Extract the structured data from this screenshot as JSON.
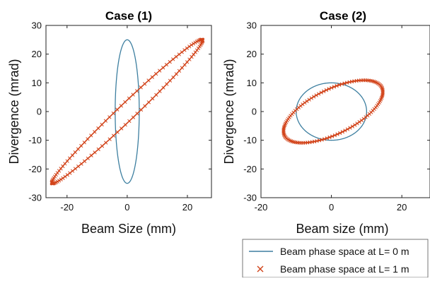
{
  "colors": {
    "title": "#3e75b5",
    "initial": "#3d7fa0",
    "final": "#d2441b",
    "axes": "#222222"
  },
  "legend": {
    "initial_label": "Beam phase space at L= 0 m",
    "final_label": "Beam phase space at L= 1 m",
    "placement": "bottom-right"
  },
  "chart_data": [
    {
      "type": "line",
      "title": "Case (1)",
      "xlabel": "Beam Size (mm)",
      "ylabel": "Divergence (mrad)",
      "xlim": [
        -27,
        28
      ],
      "ylim": [
        -30,
        30
      ],
      "xticks": [
        -20,
        0,
        20
      ],
      "yticks": [
        -30,
        -20,
        -10,
        0,
        10,
        20,
        30
      ],
      "grid": false,
      "series": [
        {
          "name": "Beam phase space at L= 0 m",
          "marker": "line",
          "color": "#3d7fa0",
          "shape": "ellipse",
          "center": [
            0,
            0
          ],
          "x_halfwidth": 4,
          "y_halfheight": 25,
          "tilt": "upright"
        },
        {
          "name": "Beam phase space at L= 1 m",
          "marker": "x",
          "color": "#d2441b",
          "shape": "ellipse",
          "endpoints": [
            [
              -25,
              -25
            ],
            [
              25,
              25
            ]
          ],
          "x_at_y0": [
            -4,
            4
          ],
          "y_at_x0": [
            -4,
            4
          ]
        }
      ]
    },
    {
      "type": "line",
      "title": "Case (2)",
      "xlabel": "Beam size (mm)",
      "ylabel": "Divergence (mrad)",
      "xlim": [
        -20,
        28
      ],
      "ylim": [
        -30,
        30
      ],
      "xticks": [
        -20,
        0,
        20
      ],
      "yticks": [
        -30,
        -20,
        -10,
        0,
        10,
        20,
        30
      ],
      "grid": false,
      "series": [
        {
          "name": "Beam phase space at L= 0 m",
          "marker": "line",
          "color": "#3d7fa0",
          "shape": "circle",
          "center": [
            0,
            0
          ],
          "x_halfwidth": 10,
          "y_halfheight": 10
        },
        {
          "name": "Beam phase space at L= 1 m",
          "marker": "x",
          "color": "#d2441b",
          "shape": "ellipse",
          "endpoints": [
            [
              -13,
              -9
            ],
            [
              14,
              9
            ]
          ],
          "x_at_y0": [
            -11,
            11
          ],
          "y_at_x0": [
            -5,
            5
          ]
        }
      ]
    }
  ]
}
